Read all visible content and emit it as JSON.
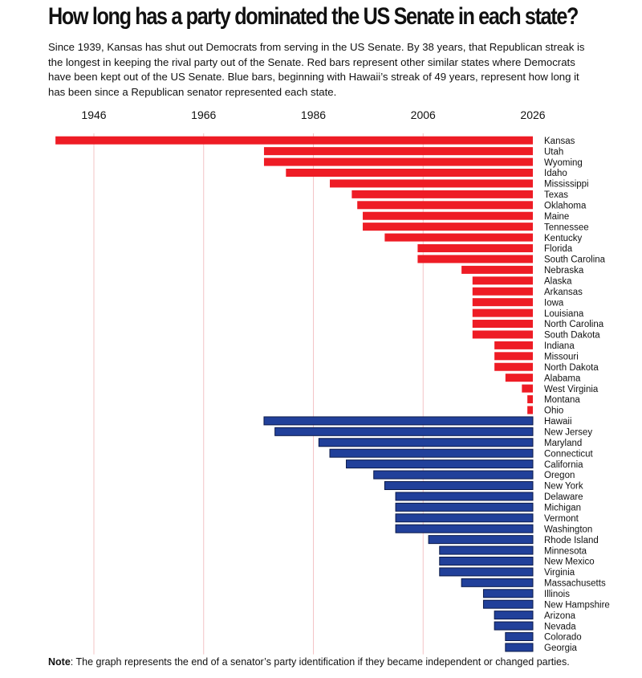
{
  "title": "How long has a party dominated the US Senate in each state?",
  "subtitle": "Since 1939, Kansas has shut out Democrats from serving in the US Senate. By 38 years, that Republican streak is the longest in keeping the rival party out of the Senate. Red bars represent other similar states where Democrats have been kept out of the US Senate. Blue bars, beginning with Hawaii’s streak of 49 years, represent how long it has been since a Republican senator represented each state.",
  "note_label": "Note",
  "note_text": ": The graph represents the end of a senator’s party identification if they became independent or changed parties.",
  "colors": {
    "republican": "#ee1c25",
    "democrat": "#21409a",
    "grid": "#f3c4c6"
  },
  "chart_data": {
    "type": "bar",
    "orientation": "horizontal",
    "x_ticks": [
      1946,
      1966,
      1986,
      2006,
      2026
    ],
    "xlim": [
      1938,
      2026
    ],
    "grid": true,
    "series": [
      {
        "party": "republican",
        "states": [
          "Kansas",
          "Utah",
          "Wyoming",
          "Idaho",
          "Mississippi",
          "Texas",
          "Oklahoma",
          "Maine",
          "Tennessee",
          "Kentucky",
          "Florida",
          "South Carolina",
          "Nebraska",
          "Alaska",
          "Arkansas",
          "Iowa",
          "Louisiana",
          "North Carolina",
          "South Dakota",
          "Indiana",
          "Missouri",
          "North Dakota",
          "Alabama",
          "West Virginia",
          "Montana",
          "Ohio"
        ],
        "start_years": [
          1939,
          1977,
          1977,
          1981,
          1989,
          1993,
          1994,
          1995,
          1995,
          1999,
          2005,
          2005,
          2013,
          2015,
          2015,
          2015,
          2015,
          2015,
          2015,
          2019,
          2019,
          2019,
          2021,
          2024,
          2025,
          2025
        ]
      },
      {
        "party": "democrat",
        "states": [
          "Hawaii",
          "New Jersey",
          "Maryland",
          "Connecticut",
          "California",
          "Oregon",
          "New York",
          "Delaware",
          "Michigan",
          "Vermont",
          "Washington",
          "Rhode Island",
          "Minnesota",
          "New Mexico",
          "Virginia",
          "Massachusetts",
          "Illinois",
          "New Hampshire",
          "Arizona",
          "Nevada",
          "Colorado",
          "Georgia"
        ],
        "start_years": [
          1977,
          1979,
          1987,
          1989,
          1992,
          1997,
          1999,
          2001,
          2001,
          2001,
          2001,
          2007,
          2009,
          2009,
          2009,
          2013,
          2017,
          2017,
          2019,
          2019,
          2021,
          2021
        ]
      }
    ]
  }
}
